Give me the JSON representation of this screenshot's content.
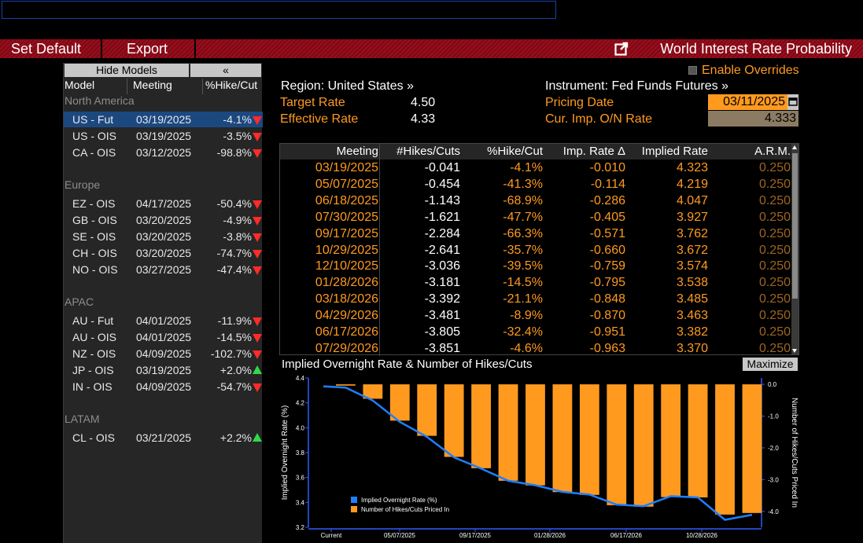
{
  "toolbar": {
    "set_default": "Set Default",
    "export": "Export",
    "title": "World Interest Rate Probability",
    "external_icon": "external-link-icon"
  },
  "left_panel": {
    "hide_models": "Hide Models",
    "collapse": "«",
    "headers": {
      "model": "Model",
      "meeting": "Meeting",
      "pct": "%Hike/Cut"
    },
    "regions": [
      {
        "name": "North America",
        "rows": [
          {
            "model": "US - Fut",
            "meeting": "03/19/2025",
            "pct": "-4.1%",
            "dir": "down",
            "selected": true
          },
          {
            "model": "US - OIS",
            "meeting": "03/19/2025",
            "pct": "-3.5%",
            "dir": "down"
          },
          {
            "model": "CA - OIS",
            "meeting": "03/12/2025",
            "pct": "-98.8%",
            "dir": "down"
          }
        ]
      },
      {
        "name": "Europe",
        "rows": [
          {
            "model": "EZ - OIS",
            "meeting": "04/17/2025",
            "pct": "-50.4%",
            "dir": "down"
          },
          {
            "model": "GB - OIS",
            "meeting": "03/20/2025",
            "pct": "-4.9%",
            "dir": "down"
          },
          {
            "model": "SE - OIS",
            "meeting": "03/20/2025",
            "pct": "-3.8%",
            "dir": "down"
          },
          {
            "model": "CH - OIS",
            "meeting": "03/20/2025",
            "pct": "-74.7%",
            "dir": "down"
          },
          {
            "model": "NO - OIS",
            "meeting": "03/27/2025",
            "pct": "-47.4%",
            "dir": "down"
          }
        ]
      },
      {
        "name": "APAC",
        "rows": [
          {
            "model": "AU - Fut",
            "meeting": "04/01/2025",
            "pct": "-11.9%",
            "dir": "down"
          },
          {
            "model": "AU - OIS",
            "meeting": "04/01/2025",
            "pct": "-14.5%",
            "dir": "down"
          },
          {
            "model": "NZ - OIS",
            "meeting": "04/09/2025",
            "pct": "-102.7%",
            "dir": "down"
          },
          {
            "model": "JP - OIS",
            "meeting": "03/19/2025",
            "pct": "+2.0%",
            "dir": "up"
          },
          {
            "model": "IN - OIS",
            "meeting": "04/09/2025",
            "pct": "-54.7%",
            "dir": "down"
          }
        ]
      },
      {
        "name": "LATAM",
        "rows": [
          {
            "model": "CL - OIS",
            "meeting": "03/21/2025",
            "pct": "+2.2%",
            "dir": "up"
          }
        ]
      }
    ]
  },
  "info": {
    "region": "Region: United States »",
    "target_rate_label": "Target Rate",
    "target_rate": "4.50",
    "effective_rate_label": "Effective Rate",
    "effective_rate": "4.33",
    "instrument": "Instrument: Fed Funds Futures »",
    "enable_overrides": "Enable Overrides",
    "pricing_date_label": "Pricing Date",
    "pricing_date": "03/11/2025",
    "cur_rate_label": "Cur. Imp. O/N Rate",
    "cur_rate": "4.333"
  },
  "table": {
    "headers": [
      "Meeting",
      "#Hikes/Cuts",
      "%Hike/Cut",
      "Imp. Rate Δ",
      "Implied Rate",
      "A.R.M."
    ],
    "rows": [
      [
        "03/19/2025",
        "-0.041",
        "-4.1%",
        "-0.010",
        "4.323",
        "0.250"
      ],
      [
        "05/07/2025",
        "-0.454",
        "-41.3%",
        "-0.114",
        "4.219",
        "0.250"
      ],
      [
        "06/18/2025",
        "-1.143",
        "-68.9%",
        "-0.286",
        "4.047",
        "0.250"
      ],
      [
        "07/30/2025",
        "-1.621",
        "-47.7%",
        "-0.405",
        "3.927",
        "0.250"
      ],
      [
        "09/17/2025",
        "-2.284",
        "-66.3%",
        "-0.571",
        "3.762",
        "0.250"
      ],
      [
        "10/29/2025",
        "-2.641",
        "-35.7%",
        "-0.660",
        "3.672",
        "0.250"
      ],
      [
        "12/10/2025",
        "-3.036",
        "-39.5%",
        "-0.759",
        "3.574",
        "0.250"
      ],
      [
        "01/28/2026",
        "-3.181",
        "-14.5%",
        "-0.795",
        "3.538",
        "0.250"
      ],
      [
        "03/18/2026",
        "-3.392",
        "-21.1%",
        "-0.848",
        "3.485",
        "0.250"
      ],
      [
        "04/29/2026",
        "-3.481",
        "-8.9%",
        "-0.870",
        "3.463",
        "0.250"
      ],
      [
        "06/17/2026",
        "-3.805",
        "-32.4%",
        "-0.951",
        "3.382",
        "0.250"
      ],
      [
        "07/29/2026",
        "-3.851",
        "-4.6%",
        "-0.963",
        "3.370",
        "0.250"
      ]
    ]
  },
  "chart_panel": {
    "title": "Implied Overnight Rate & Number of Hikes/Cuts",
    "maximize": "Maximize"
  },
  "chart_data": {
    "type": "bar",
    "ylabel": "Implied Overnight Rate (%)",
    "y2label": "Number of Hikes/Cuts Priced In",
    "ylim": [
      3.2,
      4.4
    ],
    "y2lim": [
      -4.5,
      0.2
    ],
    "yticks": [
      "3.2",
      "3.4",
      "3.6",
      "3.8",
      "4.0",
      "4.2",
      "4.4"
    ],
    "y2ticks": [
      "0.0",
      "-1.0",
      "-2.0",
      "-3.0",
      "-4.0"
    ],
    "xticks": [
      "Current",
      "05/07/2025",
      "09/17/2025",
      "01/28/2026",
      "06/17/2026",
      "10/28/2026"
    ],
    "legend": [
      "Implied Overnight Rate (%)",
      "Number of Hikes/Cuts Priced In"
    ],
    "legend_position": "bottom-left",
    "colors": {
      "line": "#1e7fff",
      "bars": "#ff9a1f",
      "axis": "#2a5cff"
    },
    "rate": [
      4.333,
      4.323,
      4.219,
      4.047,
      3.927,
      3.762,
      3.672,
      3.574,
      3.538,
      3.485,
      3.463,
      3.382,
      3.37,
      3.45,
      3.44,
      3.26,
      3.3
    ],
    "hikes": [
      -0.041,
      -0.454,
      -1.143,
      -1.621,
      -2.284,
      -2.641,
      -3.036,
      -3.181,
      -3.392,
      -3.481,
      -3.805,
      -3.851,
      -3.55,
      -3.56,
      -4.1,
      -4.05
    ]
  }
}
